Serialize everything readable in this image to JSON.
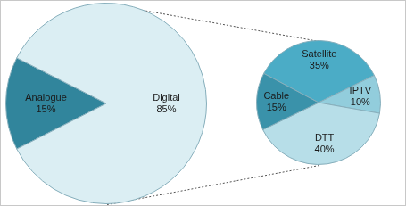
{
  "chart_data": [
    {
      "type": "pie",
      "categories": [
        "Analogue",
        "Digital"
      ],
      "values": [
        15,
        85
      ],
      "value_labels": [
        "15%",
        "85%"
      ],
      "colors": [
        "#31859c",
        "#dbeef3"
      ],
      "data_labels": true
    },
    {
      "type": "pie",
      "categories": [
        "Satellite",
        "IPTV",
        "DTT",
        "Cable"
      ],
      "values": [
        35,
        10,
        40,
        15
      ],
      "value_labels": [
        "35%",
        "10%",
        "40%",
        "15%"
      ],
      "colors": [
        "#4bacc6",
        "#92cddc",
        "#b7dee8",
        "#3a92aa"
      ],
      "data_labels": true
    }
  ]
}
